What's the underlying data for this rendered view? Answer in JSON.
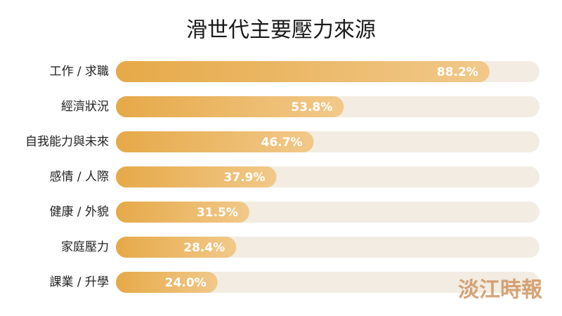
{
  "chart_data": {
    "type": "bar",
    "orientation": "horizontal",
    "title": "滑世代主要壓力來源",
    "categories": [
      "工作 / 求職",
      "經濟狀況",
      "自我能力與未來",
      "感情 / 人際",
      "健康 / 外貌",
      "家庭壓力",
      "課業 / 升學"
    ],
    "values": [
      88.2,
      53.8,
      46.7,
      37.9,
      31.5,
      28.4,
      24.0
    ],
    "value_labels": [
      "88.2%",
      "53.8%",
      "46.7%",
      "37.9%",
      "31.5%",
      "28.4%",
      "24.0%"
    ],
    "xlim": [
      0,
      100
    ],
    "color": "#e6a948",
    "track_color": "#f2ece2",
    "watermark": "淡江時報"
  }
}
